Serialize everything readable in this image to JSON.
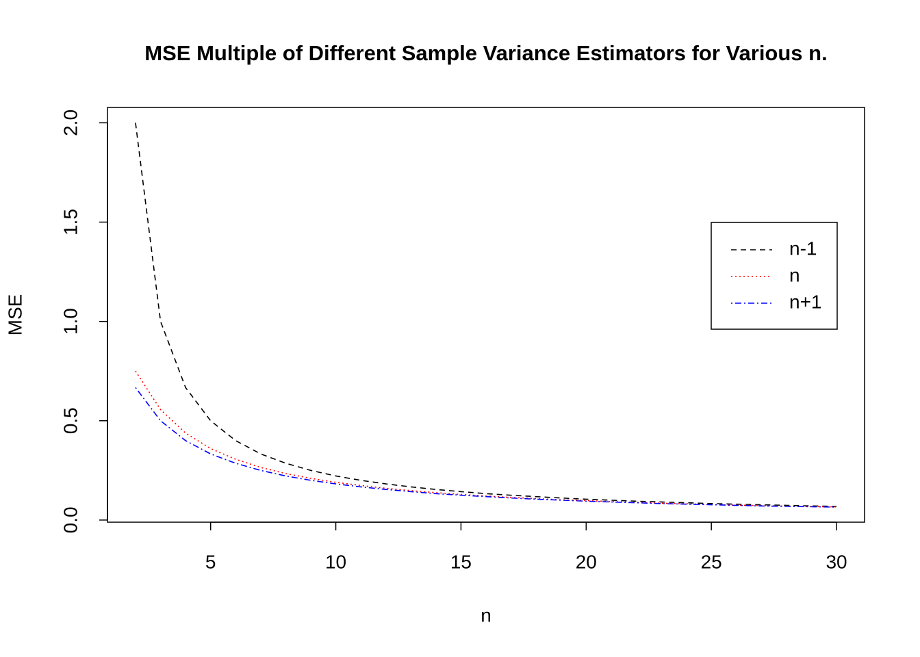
{
  "chart_data": {
    "type": "line",
    "title": "MSE Multiple of Different Sample Variance Estimators for Various n.",
    "x_label": "n",
    "y_label": "MSE",
    "x": [
      2,
      3,
      4,
      5,
      6,
      7,
      8,
      9,
      10,
      11,
      12,
      13,
      14,
      15,
      16,
      17,
      18,
      19,
      20,
      21,
      22,
      23,
      24,
      25,
      26,
      27,
      28,
      29,
      30
    ],
    "series": [
      {
        "name": "n-1",
        "color": "#000000",
        "line_style": "dashed",
        "values": [
          2,
          1,
          0.667,
          0.5,
          0.4,
          0.333,
          0.286,
          0.25,
          0.222,
          0.2,
          0.182,
          0.167,
          0.154,
          0.143,
          0.133,
          0.125,
          0.118,
          0.111,
          0.105,
          0.1,
          0.095,
          0.091,
          0.087,
          0.083,
          0.08,
          0.077,
          0.074,
          0.071,
          0.069
        ]
      },
      {
        "name": "n",
        "color": "#ff0000",
        "line_style": "dotted",
        "values": [
          0.75,
          0.556,
          0.438,
          0.36,
          0.306,
          0.265,
          0.234,
          0.21,
          0.19,
          0.174,
          0.16,
          0.148,
          0.138,
          0.129,
          0.121,
          0.114,
          0.108,
          0.102,
          0.098,
          0.093,
          0.089,
          0.085,
          0.082,
          0.078,
          0.075,
          0.073,
          0.07,
          0.068,
          0.066
        ]
      },
      {
        "name": "n+1",
        "color": "#0000ff",
        "line_style": "dotdash",
        "values": [
          0.667,
          0.5,
          0.4,
          0.333,
          0.286,
          0.25,
          0.222,
          0.2,
          0.182,
          0.167,
          0.154,
          0.143,
          0.133,
          0.125,
          0.118,
          0.111,
          0.105,
          0.1,
          0.095,
          0.091,
          0.087,
          0.083,
          0.08,
          0.077,
          0.074,
          0.071,
          0.069,
          0.067,
          0.065
        ]
      }
    ],
    "xlim": [
      0.88,
      31.12
    ],
    "xticks": [
      5,
      10,
      15,
      20,
      25,
      30
    ],
    "ylim": [
      -0.0107,
      2.0773
    ],
    "yticks": [
      {
        "value": 0,
        "label": "0.0"
      },
      0.5,
      {
        "value": 1,
        "label": "1.0"
      },
      1.5,
      {
        "value": 2,
        "label": "2.0"
      }
    ],
    "grid": false,
    "legend": "right"
  }
}
